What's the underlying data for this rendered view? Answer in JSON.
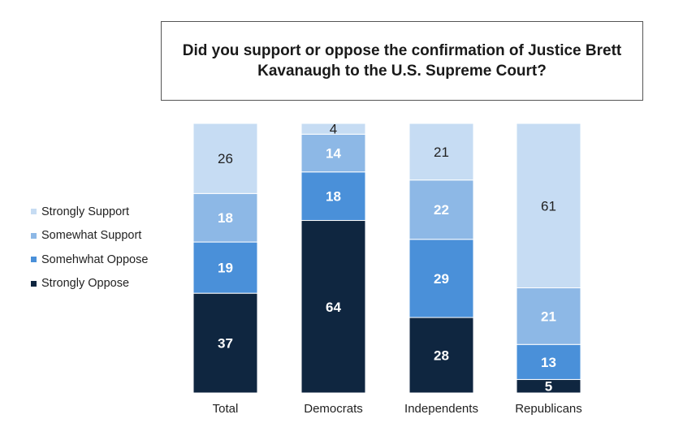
{
  "chart_data": {
    "type": "bar",
    "stacked": true,
    "orientation": "vertical",
    "title": "Did you support or oppose the confirmation of Justice Brett Kavanaugh to the U.S. Supreme Court?",
    "categories": [
      "Total",
      "Democrats",
      "Independents",
      "Republicans"
    ],
    "series": [
      {
        "name": "Strongly Oppose",
        "color": "#0f2640",
        "label_color": "#ffffff",
        "values": [
          37,
          64,
          28,
          5
        ]
      },
      {
        "name": "Somehwhat Oppose",
        "color": "#4a90d9",
        "label_color": "#ffffff",
        "values": [
          19,
          18,
          29,
          13
        ]
      },
      {
        "name": "Somewhat Support",
        "color": "#8db8e6",
        "label_color": "#ffffff",
        "values": [
          18,
          14,
          22,
          21
        ]
      },
      {
        "name": "Strongly Support",
        "color": "#c6dcf3",
        "label_color": "#222222",
        "values": [
          26,
          4,
          21,
          61
        ]
      }
    ],
    "legend": {
      "position": "left",
      "order": [
        "Strongly Support",
        "Somewhat Support",
        "Somehwhat Oppose",
        "Strongly Oppose"
      ]
    },
    "grid": false,
    "ylim": [
      0,
      100
    ]
  }
}
